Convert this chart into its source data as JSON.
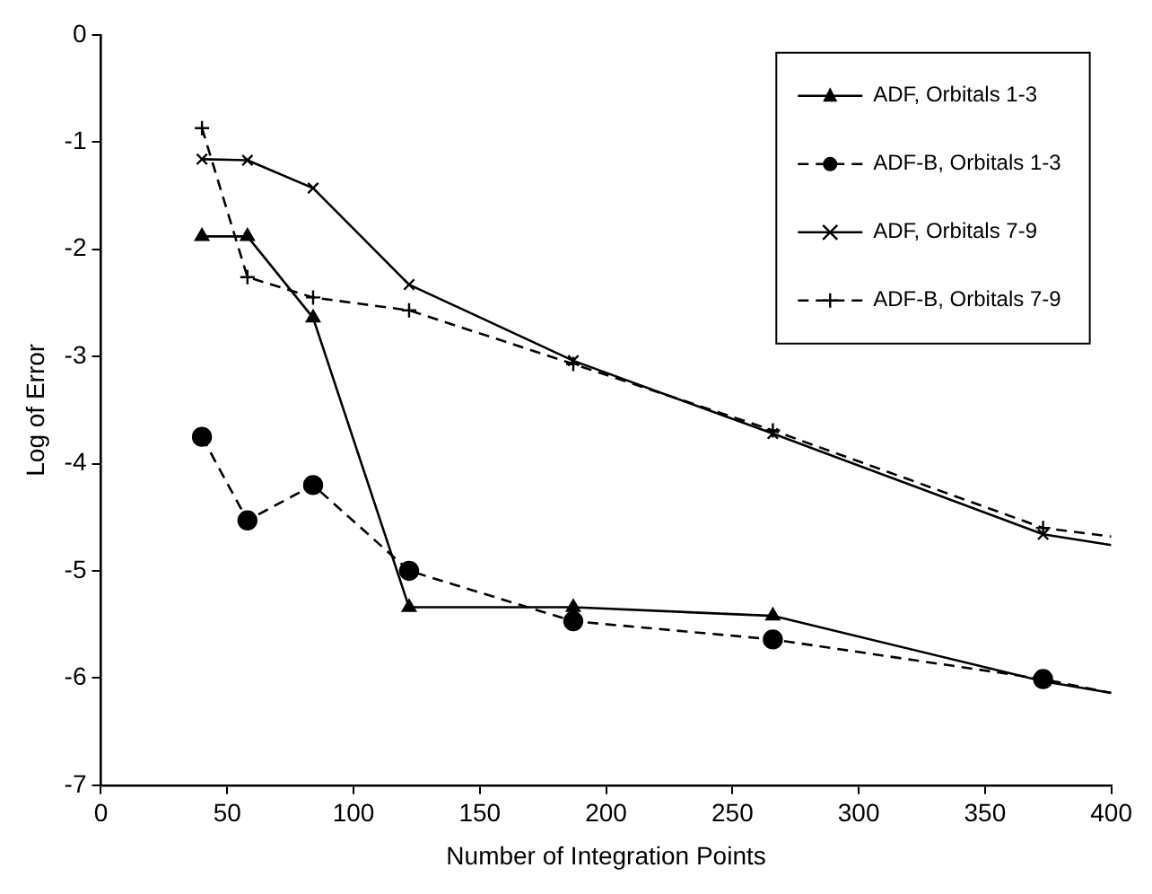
{
  "chart_data": {
    "type": "line",
    "xlabel": "Number of Integration Points",
    "ylabel": "Log of Error",
    "x": [
      40,
      58,
      84,
      122,
      187,
      266,
      373,
      400
    ],
    "series": [
      {
        "name": "ADF, Orbitals 1-3",
        "color": "#000000",
        "marker": "triangle",
        "line_style": "solid",
        "values": [
          -1.88,
          -1.88,
          -2.64,
          -5.34,
          -5.34,
          -5.42,
          -6.03,
          -6.14
        ]
      },
      {
        "name": "ADF-B, Orbitals 1-3",
        "color": "#000000",
        "marker": "circle",
        "line_style": "dashed",
        "values": [
          -3.75,
          -4.53,
          -4.2,
          -5.0,
          -5.47,
          -5.64,
          -6.01,
          -6.14
        ]
      },
      {
        "name": "ADF, Orbitals 7-9",
        "color": "#000000",
        "marker": "cross",
        "line_style": "solid",
        "values": [
          -1.16,
          -1.17,
          -1.43,
          -2.33,
          -3.04,
          -3.72,
          -4.66,
          -4.76
        ]
      },
      {
        "name": "ADF-B, Orbitals 7-9",
        "color": "#000000",
        "marker": "plus",
        "line_style": "dashed",
        "values": [
          -0.87,
          -2.26,
          -2.45,
          -2.57,
          -3.07,
          -3.69,
          -4.6,
          -4.68
        ]
      }
    ],
    "xlim": [
      0,
      400
    ],
    "xticks": [
      0,
      50,
      100,
      150,
      200,
      250,
      300,
      350,
      400
    ],
    "ylim": [
      -7,
      0
    ],
    "yticks": [
      -7,
      -6,
      -5,
      -4,
      -3,
      -2,
      -1,
      0
    ],
    "grid": false,
    "legend": "top right"
  }
}
